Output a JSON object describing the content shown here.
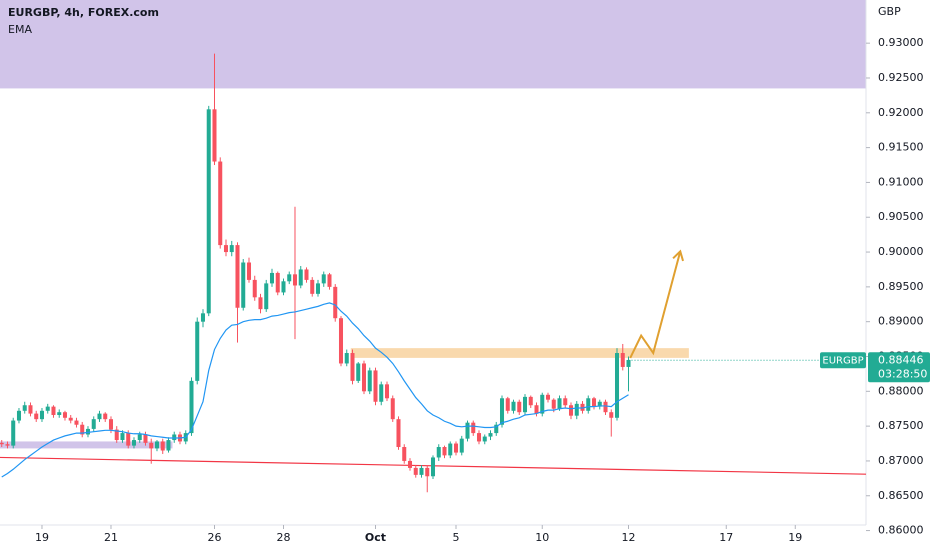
{
  "chart_data": {
    "type": "candlestick",
    "title": "EURGBP, 4h, FOREX.com",
    "indicator": "EMA",
    "axis_unit": "GBP",
    "symbol": "EURGBP",
    "current_price": 0.88446,
    "countdown": "03:28:50",
    "up_color": "#22ab94",
    "down_color": "#f7525f",
    "xlim": [
      -0.3,
      150.3
    ],
    "xticks": [
      {
        "value": 7,
        "label": "19"
      },
      {
        "value": 19,
        "label": "21"
      },
      {
        "value": 37,
        "label": "26"
      },
      {
        "value": 49,
        "label": "28"
      },
      {
        "value": 65,
        "label": "Oct"
      },
      {
        "value": 79,
        "label": "5"
      },
      {
        "value": 94,
        "label": "10"
      },
      {
        "value": 109,
        "label": "12"
      },
      {
        "value": 126,
        "label": "17"
      },
      {
        "value": 138,
        "label": "19"
      }
    ],
    "ylim": [
      0.8608,
      0.9362
    ],
    "yticks": [
      {
        "value": 0.86,
        "label": "0.86000"
      },
      {
        "value": 0.865,
        "label": "0.86500"
      },
      {
        "value": 0.87,
        "label": "0.87000"
      },
      {
        "value": 0.875,
        "label": "0.87500"
      },
      {
        "value": 0.88,
        "label": "0.88000"
      },
      {
        "value": 0.885,
        "label": "0.88500"
      },
      {
        "value": 0.89,
        "label": "0.89000"
      },
      {
        "value": 0.895,
        "label": "0.89500"
      },
      {
        "value": 0.9,
        "label": "0.90000"
      },
      {
        "value": 0.905,
        "label": "0.90500"
      },
      {
        "value": 0.91,
        "label": "0.91000"
      },
      {
        "value": 0.915,
        "label": "0.91500"
      },
      {
        "value": 0.92,
        "label": "0.92000"
      },
      {
        "value": 0.925,
        "label": "0.92500"
      },
      {
        "value": 0.93,
        "label": "0.93000"
      }
    ],
    "open": [
      0.8726,
      0.8724,
      0.8722,
      0.8758,
      0.8772,
      0.878,
      0.8768,
      0.876,
      0.8772,
      0.8778,
      0.8766,
      0.877,
      0.8762,
      0.8758,
      0.8752,
      0.8738,
      0.8746,
      0.876,
      0.8768,
      0.876,
      0.8745,
      0.873,
      0.874,
      0.8722,
      0.873,
      0.8738,
      0.8726,
      0.8718,
      0.8728,
      0.8715,
      0.873,
      0.8738,
      0.8728,
      0.874,
      0.8815,
      0.89,
      0.8912,
      0.9205,
      0.913,
      0.901,
      0.9,
      0.901,
      0.892,
      0.8985,
      0.896,
      0.8935,
      0.8918,
      0.8955,
      0.897,
      0.8942,
      0.8958,
      0.8968,
      0.8952,
      0.8975,
      0.896,
      0.894,
      0.8955,
      0.8968,
      0.895,
      0.8905,
      0.884,
      0.8855,
      0.8815,
      0.884,
      0.88,
      0.883,
      0.8785,
      0.881,
      0.879,
      0.876,
      0.872,
      0.87,
      0.869,
      0.868,
      0.869,
      0.8678,
      0.8705,
      0.872,
      0.8708,
      0.8725,
      0.8712,
      0.8732,
      0.8755,
      0.874,
      0.8728,
      0.8735,
      0.874,
      0.8752,
      0.879,
      0.8772,
      0.8785,
      0.877,
      0.8792,
      0.878,
      0.8768,
      0.8795,
      0.8788,
      0.8775,
      0.879,
      0.878,
      0.8765,
      0.8782,
      0.8772,
      0.879,
      0.8778,
      0.8785,
      0.877,
      0.8762,
      0.8855,
      0.8835
    ],
    "high": [
      0.873,
      0.8728,
      0.8762,
      0.8776,
      0.8785,
      0.8784,
      0.8772,
      0.8776,
      0.8782,
      0.878,
      0.8774,
      0.8772,
      0.8766,
      0.8762,
      0.8756,
      0.875,
      0.8764,
      0.8772,
      0.877,
      0.8764,
      0.875,
      0.8744,
      0.8744,
      0.8734,
      0.8742,
      0.8742,
      0.8732,
      0.873,
      0.8732,
      0.8734,
      0.8742,
      0.8742,
      0.8744,
      0.882,
      0.8906,
      0.8918,
      0.921,
      0.9285,
      0.9136,
      0.9018,
      0.9016,
      0.9014,
      0.899,
      0.8992,
      0.8966,
      0.894,
      0.896,
      0.8976,
      0.8972,
      0.8962,
      0.8972,
      0.9065,
      0.898,
      0.8978,
      0.8964,
      0.896,
      0.8972,
      0.897,
      0.8954,
      0.8908,
      0.886,
      0.886,
      0.8842,
      0.8844,
      0.8834,
      0.8834,
      0.8814,
      0.8814,
      0.8794,
      0.8764,
      0.8724,
      0.8704,
      0.8694,
      0.8694,
      0.8694,
      0.8708,
      0.8724,
      0.8722,
      0.8728,
      0.8728,
      0.8736,
      0.8758,
      0.8758,
      0.8744,
      0.8738,
      0.8744,
      0.8756,
      0.8794,
      0.8792,
      0.8788,
      0.8788,
      0.8796,
      0.8794,
      0.8784,
      0.8798,
      0.8798,
      0.879,
      0.8794,
      0.8794,
      0.8784,
      0.8786,
      0.8786,
      0.8794,
      0.8792,
      0.8788,
      0.8788,
      0.8774,
      0.8862,
      0.8868,
      0.885
    ],
    "low": [
      0.872,
      0.8718,
      0.8718,
      0.8754,
      0.8768,
      0.8764,
      0.8756,
      0.8756,
      0.8768,
      0.8762,
      0.8762,
      0.8758,
      0.8754,
      0.8748,
      0.8734,
      0.8734,
      0.8742,
      0.8756,
      0.8756,
      0.874,
      0.8726,
      0.8726,
      0.8718,
      0.8718,
      0.8726,
      0.8722,
      0.8696,
      0.8714,
      0.871,
      0.8712,
      0.8726,
      0.8724,
      0.8724,
      0.8736,
      0.881,
      0.8892,
      0.8908,
      0.9125,
      0.9005,
      0.8994,
      0.8994,
      0.887,
      0.8916,
      0.8956,
      0.893,
      0.8912,
      0.8914,
      0.895,
      0.8938,
      0.8938,
      0.8954,
      0.8875,
      0.8948,
      0.8956,
      0.8936,
      0.8936,
      0.895,
      0.8946,
      0.89,
      0.8836,
      0.8836,
      0.881,
      0.8812,
      0.8796,
      0.8796,
      0.878,
      0.878,
      0.8786,
      0.8756,
      0.8716,
      0.8696,
      0.8686,
      0.8676,
      0.8676,
      0.8655,
      0.8674,
      0.87,
      0.8704,
      0.8704,
      0.8708,
      0.8708,
      0.8728,
      0.8736,
      0.8724,
      0.8724,
      0.873,
      0.8736,
      0.8748,
      0.8768,
      0.8768,
      0.8766,
      0.8766,
      0.8776,
      0.8764,
      0.8764,
      0.8784,
      0.877,
      0.8772,
      0.8776,
      0.876,
      0.876,
      0.8768,
      0.8768,
      0.8774,
      0.8774,
      0.8766,
      0.8735,
      0.8758,
      0.883,
      0.88
    ],
    "close": [
      0.8724,
      0.8722,
      0.8758,
      0.8772,
      0.878,
      0.8768,
      0.876,
      0.8772,
      0.8778,
      0.8766,
      0.877,
      0.8762,
      0.8758,
      0.8752,
      0.8738,
      0.8746,
      0.876,
      0.8768,
      0.876,
      0.8745,
      0.873,
      0.874,
      0.8722,
      0.873,
      0.8738,
      0.8726,
      0.8718,
      0.8728,
      0.8715,
      0.873,
      0.8738,
      0.8728,
      0.874,
      0.8815,
      0.89,
      0.8912,
      0.9205,
      0.913,
      0.901,
      0.9,
      0.901,
      0.892,
      0.8985,
      0.896,
      0.8935,
      0.8918,
      0.8955,
      0.897,
      0.8942,
      0.8958,
      0.8968,
      0.8952,
      0.8975,
      0.896,
      0.894,
      0.8955,
      0.8968,
      0.895,
      0.8905,
      0.884,
      0.8855,
      0.8815,
      0.884,
      0.88,
      0.883,
      0.8785,
      0.881,
      0.879,
      0.876,
      0.872,
      0.87,
      0.869,
      0.868,
      0.869,
      0.8678,
      0.8705,
      0.872,
      0.8708,
      0.8725,
      0.8712,
      0.8732,
      0.8755,
      0.874,
      0.8728,
      0.8735,
      0.874,
      0.8752,
      0.879,
      0.8772,
      0.8785,
      0.877,
      0.8792,
      0.878,
      0.8768,
      0.8795,
      0.8788,
      0.8775,
      0.879,
      0.878,
      0.8765,
      0.8782,
      0.8772,
      0.879,
      0.8778,
      0.8785,
      0.877,
      0.8762,
      0.8855,
      0.8835,
      0.8845
    ],
    "ema": {
      "color": "#2196f3",
      "values": [
        0.8677,
        0.8682,
        0.8688,
        0.8695,
        0.8702,
        0.8708,
        0.8714,
        0.872,
        0.8725,
        0.873,
        0.8733,
        0.8736,
        0.8738,
        0.874,
        0.874,
        0.8741,
        0.8742,
        0.8743,
        0.8744,
        0.8744,
        0.8743,
        0.8742,
        0.874,
        0.8739,
        0.8739,
        0.8738,
        0.8736,
        0.8735,
        0.8734,
        0.8733,
        0.8733,
        0.8733,
        0.8734,
        0.8745,
        0.8765,
        0.8785,
        0.883,
        0.886,
        0.8876,
        0.8888,
        0.8895,
        0.8896,
        0.89,
        0.8902,
        0.8903,
        0.8903,
        0.8905,
        0.8908,
        0.8909,
        0.8911,
        0.8913,
        0.8914,
        0.8916,
        0.8918,
        0.892,
        0.8922,
        0.8925,
        0.8927,
        0.8924,
        0.8915,
        0.8908,
        0.8898,
        0.889,
        0.888,
        0.8872,
        0.8862,
        0.8856,
        0.8849,
        0.884,
        0.8828,
        0.8815,
        0.8803,
        0.8791,
        0.8782,
        0.8772,
        0.8766,
        0.8762,
        0.8757,
        0.8754,
        0.875,
        0.8749,
        0.875,
        0.875,
        0.8749,
        0.8748,
        0.8748,
        0.8749,
        0.8755,
        0.8757,
        0.876,
        0.8762,
        0.8766,
        0.8767,
        0.8768,
        0.8771,
        0.8773,
        0.8773,
        0.8775,
        0.8776,
        0.8775,
        0.8776,
        0.8776,
        0.8778,
        0.8778,
        0.8779,
        0.8779,
        0.8778,
        0.8785,
        0.879,
        0.8795
      ]
    },
    "zones": [
      {
        "xlim": [
          -0.3,
          150.3
        ],
        "ylim": [
          0.9235,
          0.9362
        ],
        "color": "#d1c4e9"
      },
      {
        "xlim": [
          -0.3,
          29.7
        ],
        "ylim": [
          0.8718,
          0.8728
        ],
        "color": "#d1c4e9"
      },
      {
        "xlim": [
          60.7,
          119.5
        ],
        "ylim": [
          0.8848,
          0.8862
        ],
        "color": "#f9d9ad"
      }
    ],
    "trend_line": {
      "x": [
        -0.3,
        150.3
      ],
      "y": [
        0.8705,
        0.8681
      ],
      "color": "#f23645"
    },
    "projection": {
      "x": [
        109.3,
        111.2,
        113.3,
        118.0
      ],
      "y": [
        0.8848,
        0.888,
        0.8855,
        0.9001
      ],
      "color": "#e0a030"
    }
  }
}
